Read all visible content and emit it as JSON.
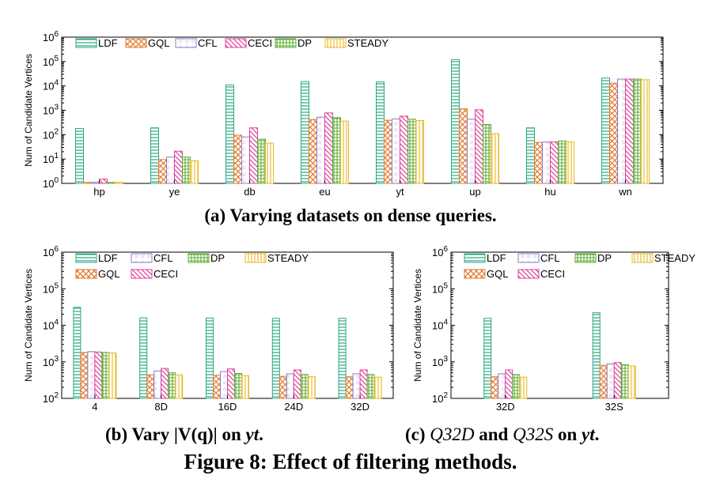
{
  "captions": {
    "a": "(a) Varying datasets on dense queries.",
    "b_prefix": "(b) Vary |V(q)| on ",
    "b_dataset": "yt",
    "b_suffix": ".",
    "c_prefix": "(c) ",
    "c_q1": "Q32D",
    "c_and": " and ",
    "c_q2": "Q32S",
    "c_on": " on ",
    "c_dataset": "yt",
    "c_suffix": ".",
    "figure": "Figure 8: Effect of filtering methods."
  },
  "chart_data": [
    {
      "type": "bar",
      "id": "a",
      "ylabel": "Num of Candidate Vertices",
      "yscale": "log",
      "ylim": [
        1,
        1000000
      ],
      "yticks": [
        "10^0",
        "10^1",
        "10^2",
        "10^3",
        "10^4",
        "10^5",
        "10^6"
      ],
      "legend": "top-left, 1 row",
      "categories": [
        "hp",
        "ye",
        "db",
        "eu",
        "yt",
        "up",
        "hu",
        "wn"
      ],
      "series": [
        {
          "name": "LDF",
          "color": "#2aa885",
          "values": [
            180,
            190,
            11000,
            15000,
            14500,
            120000,
            190,
            21000
          ]
        },
        {
          "name": "GQL",
          "color": "#e07b30",
          "values": [
            1.1,
            9.5,
            95,
            420,
            390,
            1150,
            48,
            13000
          ]
        },
        {
          "name": "CFL",
          "color": "#8a7bc8",
          "values": [
            1.1,
            12,
            80,
            520,
            440,
            430,
            50,
            19000
          ]
        },
        {
          "name": "CECI",
          "color": "#e0409a",
          "values": [
            1.5,
            21,
            190,
            780,
            570,
            1050,
            50,
            19000
          ]
        },
        {
          "name": "DP",
          "color": "#5aab32",
          "values": [
            1.1,
            12,
            65,
            500,
            430,
            260,
            55,
            19000
          ]
        },
        {
          "name": "STEADY",
          "color": "#e8b820",
          "values": [
            1.1,
            8.5,
            45,
            360,
            380,
            110,
            50,
            18000
          ]
        }
      ]
    },
    {
      "type": "bar",
      "id": "b",
      "ylabel": "Num of Candidate Vertices",
      "yscale": "log",
      "ylim": [
        100,
        1000000
      ],
      "yticks": [
        "10^2",
        "10^3",
        "10^4",
        "10^5",
        "10^6"
      ],
      "legend": "top-left, 2 rows",
      "categories": [
        "4",
        "8D",
        "16D",
        "24D",
        "32D"
      ],
      "series": [
        {
          "name": "LDF",
          "color": "#2aa885",
          "values": [
            31000,
            16000,
            15800,
            15500,
            15500
          ]
        },
        {
          "name": "GQL",
          "color": "#e07b30",
          "values": [
            1800,
            440,
            430,
            400,
            390
          ]
        },
        {
          "name": "CFL",
          "color": "#8a7bc8",
          "values": [
            1900,
            560,
            540,
            470,
            470
          ]
        },
        {
          "name": "CECI",
          "color": "#e0409a",
          "values": [
            1850,
            660,
            640,
            600,
            600
          ]
        },
        {
          "name": "DP",
          "color": "#5aab32",
          "values": [
            1800,
            500,
            480,
            450,
            450
          ]
        },
        {
          "name": "STEADY",
          "color": "#e8b820",
          "values": [
            1750,
            440,
            420,
            390,
            380
          ]
        }
      ]
    },
    {
      "type": "bar",
      "id": "c",
      "ylabel": "Num of Candidate Vertices",
      "yscale": "log",
      "ylim": [
        100,
        1000000
      ],
      "yticks": [
        "10^2",
        "10^3",
        "10^4",
        "10^5",
        "10^6"
      ],
      "legend": "top-left, 2 rows",
      "categories": [
        "32D",
        "32S"
      ],
      "series": [
        {
          "name": "LDF",
          "color": "#2aa885",
          "values": [
            15500,
            22000
          ]
        },
        {
          "name": "GQL",
          "color": "#e07b30",
          "values": [
            390,
            800
          ]
        },
        {
          "name": "CFL",
          "color": "#8a7bc8",
          "values": [
            470,
            880
          ]
        },
        {
          "name": "CECI",
          "color": "#e0409a",
          "values": [
            600,
            950
          ]
        },
        {
          "name": "DP",
          "color": "#5aab32",
          "values": [
            450,
            830
          ]
        },
        {
          "name": "STEADY",
          "color": "#e8b820",
          "values": [
            380,
            770
          ]
        }
      ]
    }
  ]
}
